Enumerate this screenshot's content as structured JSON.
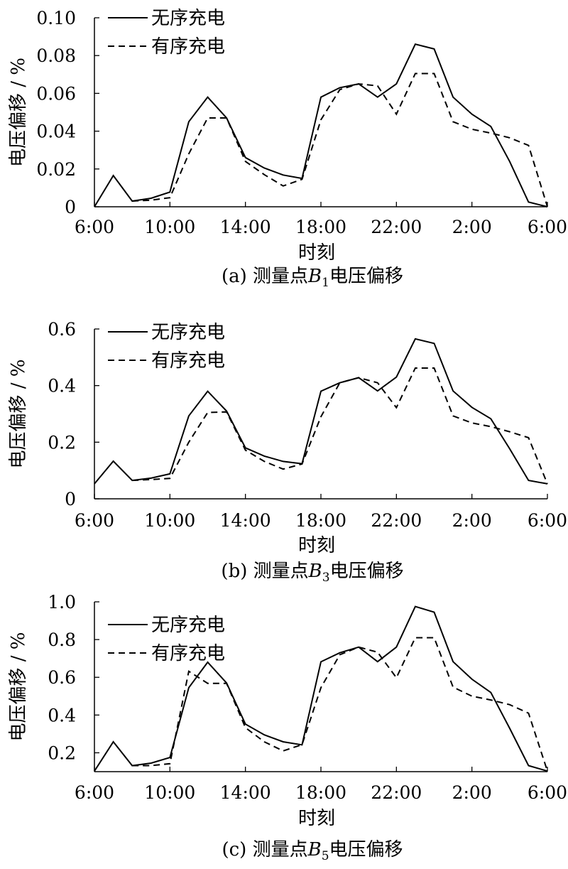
{
  "figure": {
    "x_tick_labels": [
      "6:00",
      "10:00",
      "14:00",
      "18:00",
      "22:00",
      "2:00",
      "6:00"
    ],
    "legend": {
      "unordered": "无序充电",
      "ordered": "有序充电"
    },
    "colors": {
      "line": "#000000",
      "background": "#ffffff"
    }
  },
  "chart_data": [
    {
      "type": "line",
      "caption": {
        "letter": "(a)",
        "prefix": "测量点",
        "var": "B",
        "sub": "1",
        "suffix": "电压偏移"
      },
      "xlabel": "时刻",
      "ylabel": "电压偏移 / %",
      "x": [
        "6:00",
        "7:00",
        "8:00",
        "9:00",
        "10:00",
        "11:00",
        "12:00",
        "13:00",
        "14:00",
        "15:00",
        "16:00",
        "17:00",
        "18:00",
        "19:00",
        "20:00",
        "21:00",
        "22:00",
        "23:00",
        "0:00",
        "1:00",
        "2:00",
        "3:00",
        "4:00",
        "5:00",
        "6:00"
      ],
      "x_ticks": [
        "6:00",
        "10:00",
        "14:00",
        "18:00",
        "22:00",
        "2:00",
        "6:00"
      ],
      "ylim": [
        0,
        0.1
      ],
      "y_ticks": [
        "0",
        "0.02",
        "0.04",
        "0.06",
        "0.08",
        "0.10"
      ],
      "legend_position": "top-left",
      "series": [
        {
          "name": "无序充电",
          "style": "solid",
          "values": [
            0.0,
            0.0165,
            0.003,
            0.0045,
            0.0078,
            0.045,
            0.058,
            0.047,
            0.026,
            0.0205,
            0.0168,
            0.015,
            0.058,
            0.063,
            0.065,
            0.058,
            0.065,
            0.086,
            0.0835,
            0.058,
            0.049,
            0.0425,
            0.024,
            0.0025,
            0.0
          ]
        },
        {
          "name": "有序充电",
          "style": "dashed",
          "values": [
            null,
            null,
            0.003,
            0.0035,
            0.0048,
            0.028,
            0.047,
            0.047,
            0.024,
            0.017,
            0.011,
            0.0145,
            0.046,
            0.062,
            0.065,
            0.064,
            0.049,
            0.0705,
            0.0705,
            0.045,
            0.041,
            0.039,
            0.0365,
            0.0325,
            0.0
          ]
        }
      ]
    },
    {
      "type": "line",
      "caption": {
        "letter": "(b)",
        "prefix": "测量点",
        "var": "B",
        "sub": "3",
        "suffix": "电压偏移"
      },
      "xlabel": "时刻",
      "ylabel": "电压偏移 / %",
      "x": [
        "6:00",
        "7:00",
        "8:00",
        "9:00",
        "10:00",
        "11:00",
        "12:00",
        "13:00",
        "14:00",
        "15:00",
        "16:00",
        "17:00",
        "18:00",
        "19:00",
        "20:00",
        "21:00",
        "22:00",
        "23:00",
        "0:00",
        "1:00",
        "2:00",
        "3:00",
        "4:00",
        "5:00",
        "6:00"
      ],
      "x_ticks": [
        "6:00",
        "10:00",
        "14:00",
        "18:00",
        "22:00",
        "2:00",
        "6:00"
      ],
      "ylim": [
        0,
        0.6
      ],
      "y_ticks": [
        "0",
        "0.2",
        "0.4",
        "0.6"
      ],
      "legend_position": "top-left",
      "series": [
        {
          "name": "无序充电",
          "style": "solid",
          "values": [
            0.053,
            0.133,
            0.065,
            0.073,
            0.088,
            0.293,
            0.38,
            0.31,
            0.18,
            0.151,
            0.132,
            0.124,
            0.38,
            0.41,
            0.428,
            0.381,
            0.43,
            0.565,
            0.549,
            0.381,
            0.323,
            0.283,
            0.177,
            0.065,
            0.053
          ]
        },
        {
          "name": "有序充电",
          "style": "dashed",
          "values": [
            null,
            null,
            0.065,
            0.068,
            0.072,
            0.2,
            0.305,
            0.307,
            0.172,
            0.132,
            0.105,
            0.123,
            0.29,
            0.41,
            0.428,
            0.41,
            0.322,
            0.462,
            0.462,
            0.293,
            0.268,
            0.255,
            0.237,
            0.216,
            0.053
          ]
        }
      ]
    },
    {
      "type": "line",
      "caption": {
        "letter": "(c)",
        "prefix": "测量点",
        "var": "B",
        "sub": "5",
        "suffix": "电压偏移"
      },
      "xlabel": "时刻",
      "ylabel": "电压偏移 / %",
      "x": [
        "6:00",
        "7:00",
        "8:00",
        "9:00",
        "10:00",
        "11:00",
        "12:00",
        "13:00",
        "14:00",
        "15:00",
        "16:00",
        "17:00",
        "18:00",
        "19:00",
        "20:00",
        "21:00",
        "22:00",
        "23:00",
        "0:00",
        "1:00",
        "2:00",
        "3:00",
        "4:00",
        "5:00",
        "6:00"
      ],
      "x_ticks": [
        "6:00",
        "10:00",
        "14:00",
        "18:00",
        "22:00",
        "2:00",
        "6:00"
      ],
      "ylim": [
        0.1,
        1.0
      ],
      "y_ticks": [
        "0.2",
        "0.4",
        "0.6",
        "0.8",
        "1.0"
      ],
      "legend_position": "top-left",
      "series": [
        {
          "name": "无序充电",
          "style": "solid",
          "values": [
            0.103,
            0.258,
            0.132,
            0.145,
            0.175,
            0.545,
            0.68,
            0.57,
            0.352,
            0.295,
            0.258,
            0.242,
            0.682,
            0.73,
            0.76,
            0.683,
            0.76,
            0.975,
            0.945,
            0.683,
            0.59,
            0.52,
            0.33,
            0.132,
            0.103
          ]
        },
        {
          "name": "有序充电",
          "style": "dashed",
          "values": [
            null,
            null,
            0.132,
            0.132,
            0.142,
            0.632,
            0.568,
            0.568,
            0.333,
            0.258,
            0.21,
            0.243,
            0.545,
            0.72,
            0.76,
            0.733,
            0.598,
            0.81,
            0.81,
            0.548,
            0.5,
            0.48,
            0.455,
            0.41,
            0.103
          ]
        }
      ]
    }
  ]
}
